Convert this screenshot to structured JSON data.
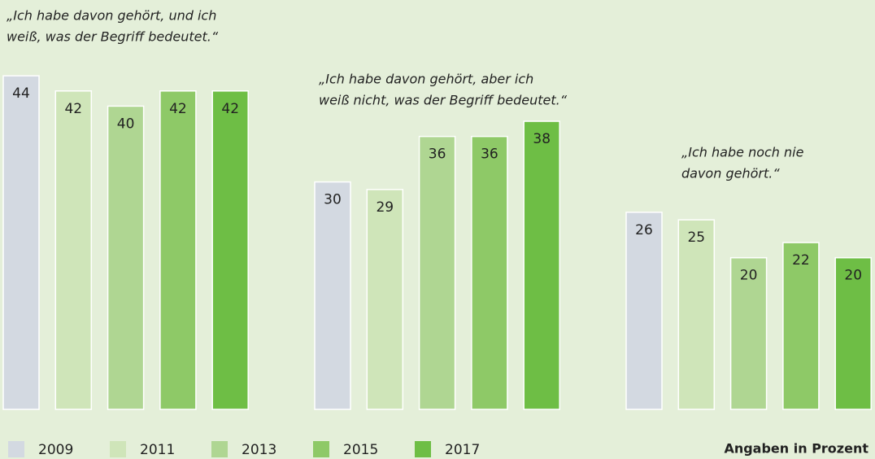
{
  "chart_data": {
    "type": "bar",
    "categories": [
      [
        "„Ich habe davon gehört, und ich",
        "weiß, was der Begriff bedeutet.“"
      ],
      [
        "„Ich habe davon gehört, aber ich",
        "weiß nicht, was der Begriff bedeutet.“"
      ],
      [
        "„Ich habe noch nie",
        "davon gehört.“"
      ]
    ],
    "series": [
      {
        "name": "2009",
        "color": "#d3d9e1",
        "values": [
          44,
          30,
          26
        ]
      },
      {
        "name": "2011",
        "color": "#cfe5b9",
        "values": [
          42,
          29,
          25
        ]
      },
      {
        "name": "2013",
        "color": "#afd692",
        "values": [
          40,
          36,
          20
        ]
      },
      {
        "name": "2015",
        "color": "#8ec967",
        "values": [
          42,
          36,
          22
        ]
      },
      {
        "name": "2017",
        "color": "#6ebe45",
        "values": [
          42,
          38,
          20
        ]
      }
    ],
    "ylim": [
      0,
      54
    ],
    "note": "Angaben in Prozent"
  }
}
